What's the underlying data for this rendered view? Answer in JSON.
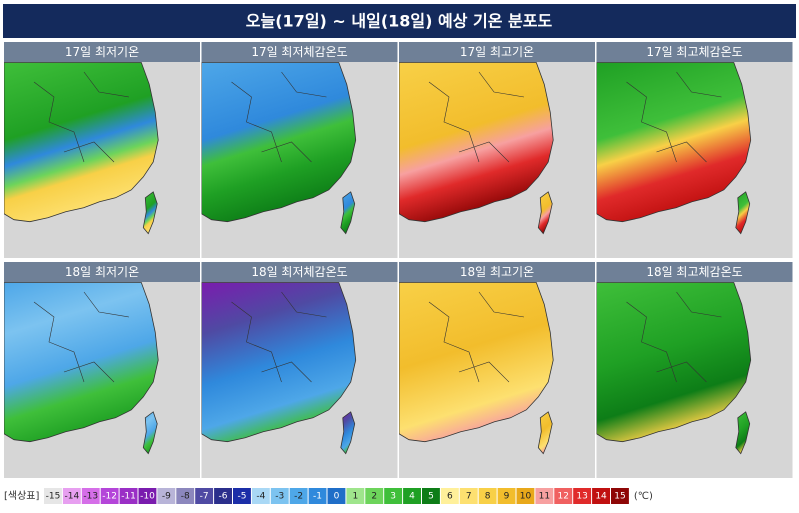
{
  "title": "오늘(17일) ~ 내일(18일) 예상 기온 분포도",
  "panels": [
    {
      "title": "17일 최저기온"
    },
    {
      "title": "17일 최저체감온도"
    },
    {
      "title": "17일 최고기온"
    },
    {
      "title": "17일 최고체감온도"
    },
    {
      "title": "18일 최저기온"
    },
    {
      "title": "18일 최저체감온도"
    },
    {
      "title": "18일 최고기온"
    },
    {
      "title": "18일 최고체감온도"
    }
  ],
  "legend": {
    "label": "[색상표]",
    "unit": "(℃)",
    "items": [
      {
        "value": -15,
        "color": "#e6e6e6"
      },
      {
        "value": -14,
        "color": "#e79ff0"
      },
      {
        "value": -13,
        "color": "#d56ee8"
      },
      {
        "value": -12,
        "color": "#b445d9"
      },
      {
        "value": -11,
        "color": "#9a2fc6"
      },
      {
        "value": -10,
        "color": "#7a1cae"
      },
      {
        "value": -9,
        "color": "#b8b4d8"
      },
      {
        "value": -8,
        "color": "#8c87bd"
      },
      {
        "value": -7,
        "color": "#4f4aa3"
      },
      {
        "value": -6,
        "color": "#2b2f8c"
      },
      {
        "value": -5,
        "color": "#1b2ea8"
      },
      {
        "value": -4,
        "color": "#a9d8f5"
      },
      {
        "value": -3,
        "color": "#7cc3f0"
      },
      {
        "value": -2,
        "color": "#4ea7e8"
      },
      {
        "value": -1,
        "color": "#2f89dc"
      },
      {
        "value": 0,
        "color": "#1f6ec8"
      },
      {
        "value": 1,
        "color": "#9fe58c"
      },
      {
        "value": 2,
        "color": "#6dd45b"
      },
      {
        "value": 3,
        "color": "#3fbf3a"
      },
      {
        "value": 4,
        "color": "#1fa024"
      },
      {
        "value": 5,
        "color": "#0d7d17"
      },
      {
        "value": 6,
        "color": "#fff09a"
      },
      {
        "value": 7,
        "color": "#fde070"
      },
      {
        "value": 8,
        "color": "#f8d047"
      },
      {
        "value": 9,
        "color": "#f2bd2c"
      },
      {
        "value": 10,
        "color": "#e8a81a"
      },
      {
        "value": 11,
        "color": "#f7a0a0"
      },
      {
        "value": 12,
        "color": "#f06060"
      },
      {
        "value": 13,
        "color": "#e02a2a"
      },
      {
        "value": 14,
        "color": "#c01010"
      },
      {
        "value": 15,
        "color": "#8e0606"
      }
    ]
  }
}
